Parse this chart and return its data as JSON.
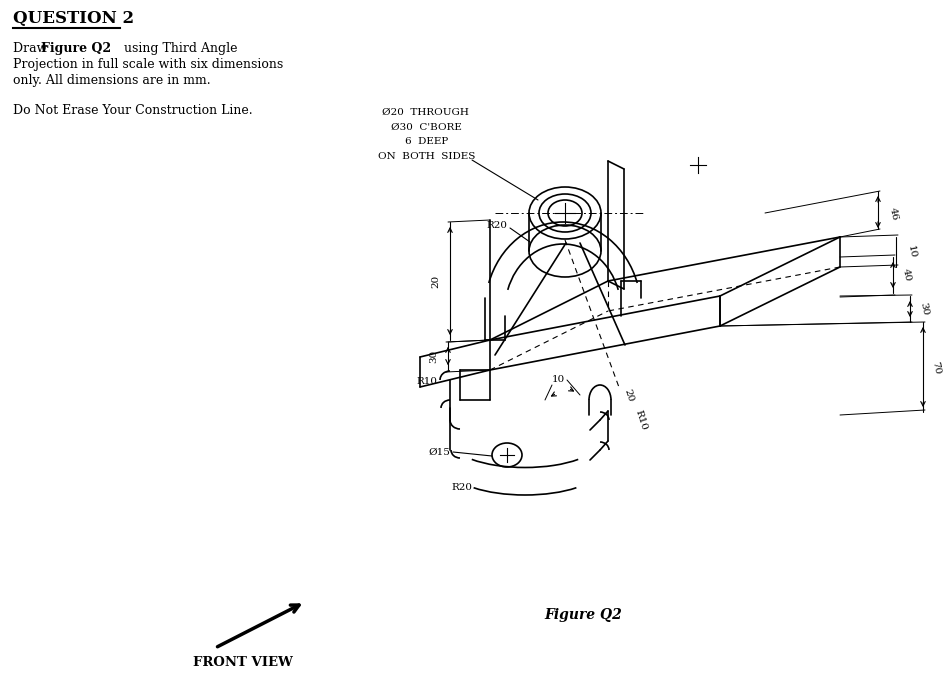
{
  "bg_color": "#ffffff",
  "title": "QUESTION 2",
  "note_lines": [
    "Ø20  THROUGH",
    "  Ø30  C'BORE",
    "      6  DEEP",
    "ON  BOTH  SIDES"
  ],
  "figure_label": "Figure Q2",
  "front_view": "FRONT VIEW",
  "dims": {
    "46": "46",
    "40": "40",
    "30": "30",
    "70": "70",
    "10r": "10",
    "10f": "10",
    "20L": "20",
    "30L": "30",
    "R20t": "R20",
    "R10": "R10",
    "R20b": "R20",
    "phi15": "Ø15",
    "20s": "20",
    "R10s": "R10"
  }
}
